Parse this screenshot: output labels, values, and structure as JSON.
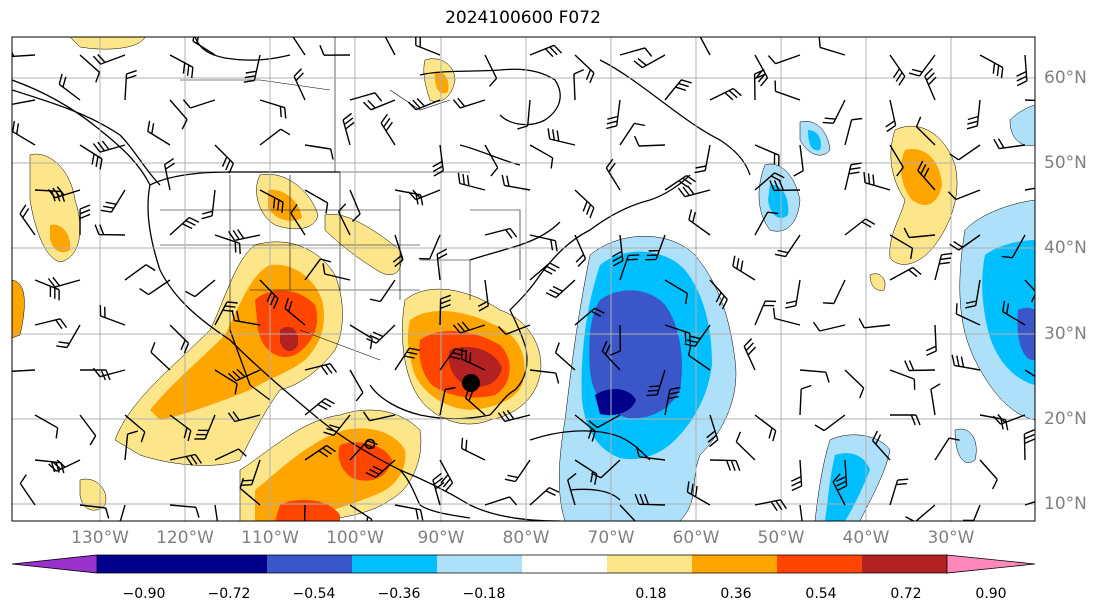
{
  "title": "2024100600 F072",
  "lon_labels": [
    "130°W",
    "120°W",
    "110°W",
    "100°W",
    "90°W",
    "80°W",
    "70°W",
    "60°W",
    "50°W",
    "40°W",
    "30°W"
  ],
  "lat_labels": [
    "60°N",
    "50°N",
    "40°N",
    "30°N",
    "20°N",
    "10°N"
  ],
  "colorbar": {
    "labels": [
      "−0.90",
      "−0.72",
      "−0.54",
      "−0.36",
      "−0.18",
      "0.18",
      "0.36",
      "0.54",
      "0.72",
      "0.90"
    ],
    "colors": [
      "#9932cc",
      "#00008b",
      "#3a56c8",
      "#00bfff",
      "#aee0fa",
      "#ffffff",
      "#fde68a",
      "#ffa500",
      "#ff4500",
      "#b22222",
      "#ff88bb"
    ]
  },
  "map": {
    "grid_color": "#b0b0b0",
    "positive_colors": {
      "0.18": "#fde68a",
      "0.36": "#ffa500",
      "0.54": "#ff4500",
      "0.72": "#b22222"
    },
    "negative_colors": {
      "-0.18": "#aee0fa",
      "-0.36": "#00bfff",
      "-0.54": "#3a56c8",
      "-0.72": "#00008b"
    },
    "markers": [
      "storm-center-filled",
      "storm-center-open"
    ]
  }
}
